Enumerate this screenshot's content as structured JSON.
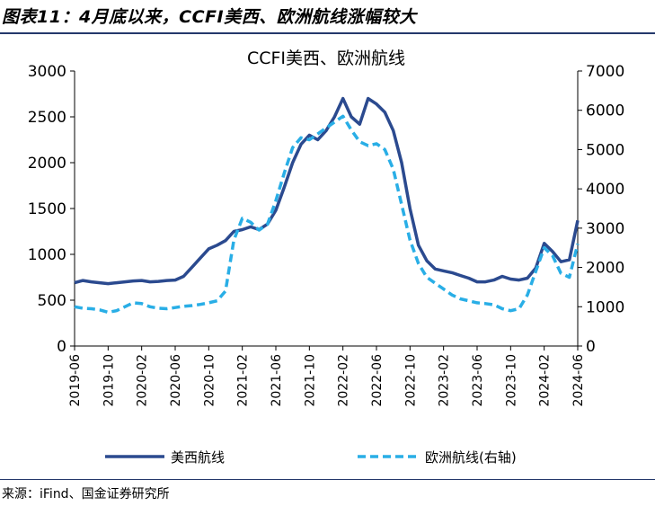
{
  "figure": {
    "title": "图表11：4月底以来，CCFI美西、欧洲航线涨幅较大",
    "source": "来源：iFind、国金证券研究所"
  },
  "chart_data": {
    "type": "line",
    "title": "CCFI美西、欧洲航线",
    "xlabel": "",
    "ylabel": "",
    "y_left_lim": [
      0,
      3000
    ],
    "y_right_lim": [
      0,
      7000
    ],
    "y_left_ticks": [
      0,
      500,
      1000,
      1500,
      2000,
      2500,
      3000
    ],
    "y_right_ticks": [
      0,
      1000,
      2000,
      3000,
      4000,
      5000,
      6000,
      7000
    ],
    "x_ticks": [
      "2019-06",
      "2019-10",
      "2020-02",
      "2020-06",
      "2020-10",
      "2021-02",
      "2021-06",
      "2021-10",
      "2022-02",
      "2022-06",
      "2022-10",
      "2023-02",
      "2023-06",
      "2023-10",
      "2024-02",
      "2024-06"
    ],
    "grid": false,
    "legend_position": "bottom",
    "colors": {
      "us_west": "#2b4a8f",
      "europe": "#29aee6"
    },
    "series": [
      {
        "name": "美西航线",
        "axis": "left",
        "style": "solid",
        "points": [
          [
            "2019-06-01",
            690
          ],
          [
            "2019-07-01",
            715
          ],
          [
            "2019-08-01",
            700
          ],
          [
            "2019-09-01",
            690
          ],
          [
            "2019-10-01",
            680
          ],
          [
            "2019-11-01",
            690
          ],
          [
            "2019-12-01",
            700
          ],
          [
            "2020-01-01",
            710
          ],
          [
            "2020-02-01",
            715
          ],
          [
            "2020-03-01",
            700
          ],
          [
            "2020-04-01",
            705
          ],
          [
            "2020-05-01",
            715
          ],
          [
            "2020-06-01",
            720
          ],
          [
            "2020-07-01",
            760
          ],
          [
            "2020-08-01",
            860
          ],
          [
            "2020-09-01",
            960
          ],
          [
            "2020-10-01",
            1060
          ],
          [
            "2020-11-01",
            1100
          ],
          [
            "2020-12-01",
            1150
          ],
          [
            "2021-01-01",
            1250
          ],
          [
            "2021-02-01",
            1270
          ],
          [
            "2021-03-01",
            1300
          ],
          [
            "2021-04-01",
            1270
          ],
          [
            "2021-05-01",
            1330
          ],
          [
            "2021-06-01",
            1480
          ],
          [
            "2021-07-01",
            1730
          ],
          [
            "2021-08-01",
            2000
          ],
          [
            "2021-09-01",
            2200
          ],
          [
            "2021-10-01",
            2300
          ],
          [
            "2021-11-01",
            2250
          ],
          [
            "2021-12-01",
            2350
          ],
          [
            "2022-01-01",
            2500
          ],
          [
            "2022-02-01",
            2700
          ],
          [
            "2022-03-01",
            2500
          ],
          [
            "2022-04-01",
            2420
          ],
          [
            "2022-05-01",
            2700
          ],
          [
            "2022-06-01",
            2640
          ],
          [
            "2022-07-01",
            2550
          ],
          [
            "2022-08-01",
            2350
          ],
          [
            "2022-09-01",
            2000
          ],
          [
            "2022-10-01",
            1500
          ],
          [
            "2022-11-01",
            1100
          ],
          [
            "2022-12-01",
            930
          ],
          [
            "2023-01-01",
            840
          ],
          [
            "2023-02-01",
            820
          ],
          [
            "2023-03-01",
            800
          ],
          [
            "2023-04-01",
            770
          ],
          [
            "2023-05-01",
            740
          ],
          [
            "2023-06-01",
            700
          ],
          [
            "2023-07-01",
            700
          ],
          [
            "2023-08-01",
            720
          ],
          [
            "2023-09-01",
            760
          ],
          [
            "2023-10-01",
            730
          ],
          [
            "2023-11-01",
            720
          ],
          [
            "2023-12-01",
            740
          ],
          [
            "2024-01-01",
            850
          ],
          [
            "2024-02-01",
            1120
          ],
          [
            "2024-03-01",
            1030
          ],
          [
            "2024-04-01",
            920
          ],
          [
            "2024-05-01",
            940
          ],
          [
            "2024-06-01",
            1370
          ]
        ]
      },
      {
        "name": "欧洲航线(右轴)",
        "axis": "right",
        "style": "dashed",
        "points": [
          [
            "2019-06-01",
            1000
          ],
          [
            "2019-07-01",
            960
          ],
          [
            "2019-08-01",
            950
          ],
          [
            "2019-09-01",
            920
          ],
          [
            "2019-10-01",
            860
          ],
          [
            "2019-11-01",
            900
          ],
          [
            "2019-12-01",
            1000
          ],
          [
            "2020-01-01",
            1100
          ],
          [
            "2020-02-01",
            1080
          ],
          [
            "2020-03-01",
            1000
          ],
          [
            "2020-04-01",
            960
          ],
          [
            "2020-05-01",
            950
          ],
          [
            "2020-06-01",
            980
          ],
          [
            "2020-07-01",
            1010
          ],
          [
            "2020-08-01",
            1030
          ],
          [
            "2020-09-01",
            1060
          ],
          [
            "2020-10-01",
            1100
          ],
          [
            "2020-11-01",
            1150
          ],
          [
            "2020-12-01",
            1400
          ],
          [
            "2021-01-01",
            2700
          ],
          [
            "2021-02-01",
            3250
          ],
          [
            "2021-03-01",
            3150
          ],
          [
            "2021-04-01",
            2950
          ],
          [
            "2021-05-01",
            3100
          ],
          [
            "2021-06-01",
            3700
          ],
          [
            "2021-07-01",
            4400
          ],
          [
            "2021-08-01",
            5050
          ],
          [
            "2021-09-01",
            5300
          ],
          [
            "2021-10-01",
            5250
          ],
          [
            "2021-11-01",
            5400
          ],
          [
            "2021-12-01",
            5550
          ],
          [
            "2022-01-01",
            5700
          ],
          [
            "2022-02-01",
            5850
          ],
          [
            "2022-03-01",
            5500
          ],
          [
            "2022-04-01",
            5200
          ],
          [
            "2022-05-01",
            5100
          ],
          [
            "2022-06-01",
            5150
          ],
          [
            "2022-07-01",
            5000
          ],
          [
            "2022-08-01",
            4500
          ],
          [
            "2022-09-01",
            3600
          ],
          [
            "2022-10-01",
            2700
          ],
          [
            "2022-11-01",
            2100
          ],
          [
            "2022-12-01",
            1750
          ],
          [
            "2023-01-01",
            1600
          ],
          [
            "2023-02-01",
            1450
          ],
          [
            "2023-03-01",
            1300
          ],
          [
            "2023-04-01",
            1200
          ],
          [
            "2023-05-01",
            1150
          ],
          [
            "2023-06-01",
            1100
          ],
          [
            "2023-07-01",
            1080
          ],
          [
            "2023-08-01",
            1050
          ],
          [
            "2023-09-01",
            950
          ],
          [
            "2023-10-01",
            900
          ],
          [
            "2023-11-01",
            950
          ],
          [
            "2023-12-01",
            1300
          ],
          [
            "2024-01-01",
            1900
          ],
          [
            "2024-02-01",
            2500
          ],
          [
            "2024-03-01",
            2300
          ],
          [
            "2024-04-01",
            1850
          ],
          [
            "2024-05-01",
            1750
          ],
          [
            "2024-06-01",
            2600
          ]
        ]
      }
    ]
  }
}
